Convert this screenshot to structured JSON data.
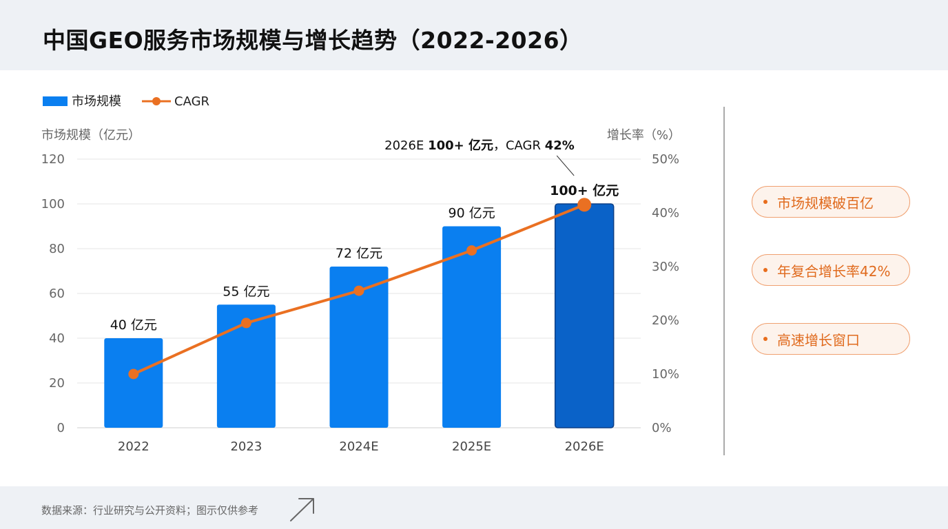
{
  "title": "中国GEO服务市场规模与增长趋势（2022-2026）",
  "source_note": "数据来源：行业研究与公开资料；图示仅供参考",
  "highlights": [
    "市场规模破百亿",
    "年复合增长率42%",
    "高速增长窗口"
  ],
  "colors": {
    "bar": "#0a7ff0",
    "bar_highlight": "#0a62c8",
    "line": "#ea7022",
    "pill_text": "#e06a1d",
    "pill_border": "#f0a070"
  },
  "chart_data": {
    "type": "bar",
    "categories": [
      "2022",
      "2023",
      "2024E",
      "2025E",
      "2026E"
    ],
    "series": [
      {
        "name": "市场规模",
        "type": "bar",
        "axis": "left",
        "values": [
          40,
          55,
          72,
          90,
          100
        ],
        "data_labels": [
          "40 亿元",
          "55 亿元",
          "72 亿元",
          "90 亿元",
          "100+ 亿元"
        ]
      },
      {
        "name": "CAGR",
        "type": "line",
        "axis": "right",
        "values": [
          10,
          19.5,
          25.5,
          33,
          41.5
        ]
      }
    ],
    "ylabel_left": "市场规模（亿元）",
    "ylabel_right": "增长率（%）",
    "ylim_left": [
      0,
      120
    ],
    "yticks_left": [
      "0",
      "20",
      "40",
      "60",
      "80",
      "100",
      "120"
    ],
    "ylim_right": [
      0,
      50
    ],
    "yticks_right": [
      "0%",
      "10%",
      "20%",
      "30%",
      "40%",
      "50%"
    ],
    "highlight_index": 4,
    "annotation": {
      "prefix": "2026E ",
      "bold1": "100+ 亿元",
      "middle": "，CAGR ",
      "bold2": "42%"
    },
    "legend_position": "top-left",
    "grid": true
  }
}
